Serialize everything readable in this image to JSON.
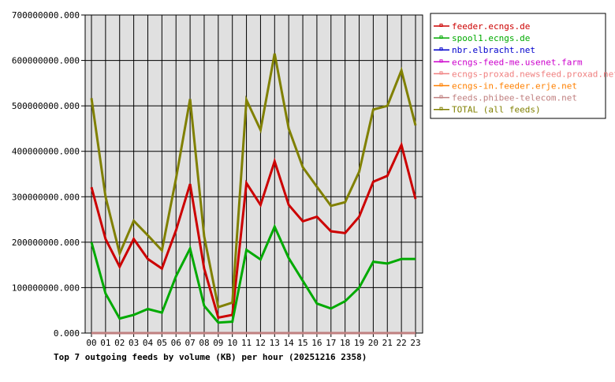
{
  "chart_data": {
    "type": "line",
    "title": "Top 7 outgoing feeds by volume (KB) per hour (20251216 2358)",
    "xlabel": "",
    "ylabel": "",
    "ylim": [
      0,
      700000000
    ],
    "grid": true,
    "legend_position": "right",
    "background": "#e0e0e0",
    "y_ticks": [
      "0.000",
      "100000000.000",
      "200000000.000",
      "300000000.000",
      "400000000.000",
      "500000000.000",
      "600000000.000",
      "700000000.000"
    ],
    "categories": [
      "00",
      "01",
      "02",
      "03",
      "04",
      "05",
      "06",
      "07",
      "08",
      "09",
      "10",
      "11",
      "12",
      "13",
      "14",
      "15",
      "16",
      "17",
      "18",
      "19",
      "20",
      "21",
      "22",
      "23"
    ],
    "series": [
      {
        "name": "feeder.ecngs.de",
        "color": "#cc0000",
        "values": [
          321000000,
          207000000,
          146000000,
          207000000,
          163000000,
          142000000,
          226000000,
          328000000,
          142000000,
          34000000,
          40000000,
          330000000,
          282000000,
          378000000,
          282000000,
          246000000,
          256000000,
          224000000,
          220000000,
          256000000,
          333000000,
          346000000,
          414000000,
          295000000
        ]
      },
      {
        "name": "spool1.ecngs.de",
        "color": "#00aa00",
        "values": [
          200000000,
          87000000,
          32000000,
          40000000,
          53000000,
          45000000,
          125000000,
          186000000,
          60000000,
          23000000,
          25000000,
          183000000,
          162000000,
          234000000,
          165000000,
          115000000,
          65000000,
          54000000,
          70000000,
          100000000,
          157000000,
          153000000,
          163000000,
          163000000
        ]
      },
      {
        "name": "nbr.elbracht.net",
        "color": "#0000cc",
        "values": [
          0,
          0,
          0,
          0,
          0,
          0,
          0,
          0,
          0,
          0,
          0,
          0,
          0,
          0,
          0,
          0,
          0,
          0,
          0,
          0,
          0,
          0,
          0,
          0
        ]
      },
      {
        "name": "ecngs-feed-me.usenet.farm",
        "color": "#cc00cc",
        "values": [
          0,
          0,
          0,
          0,
          0,
          0,
          0,
          0,
          0,
          0,
          0,
          0,
          0,
          0,
          0,
          0,
          0,
          0,
          0,
          0,
          0,
          0,
          0,
          0
        ]
      },
      {
        "name": "ecngs-proxad.newsfeed.proxad.net",
        "color": "#f08080",
        "values": [
          0,
          0,
          0,
          0,
          0,
          0,
          0,
          0,
          0,
          0,
          0,
          0,
          0,
          0,
          0,
          0,
          0,
          0,
          0,
          0,
          0,
          0,
          0,
          0
        ]
      },
      {
        "name": "ecngs-in.feeder.erje.net",
        "color": "#ff8000",
        "values": [
          0,
          0,
          0,
          0,
          0,
          0,
          0,
          0,
          0,
          0,
          0,
          0,
          0,
          0,
          0,
          0,
          0,
          0,
          0,
          0,
          0,
          0,
          0,
          0
        ]
      },
      {
        "name": "feeds.phibee-telecom.net",
        "color": "#c08080",
        "values": [
          0,
          0,
          0,
          0,
          0,
          0,
          0,
          0,
          0,
          0,
          0,
          0,
          0,
          0,
          0,
          0,
          0,
          0,
          0,
          0,
          0,
          0,
          0,
          0
        ]
      },
      {
        "name": "TOTAL (all feeds)",
        "color": "#808000",
        "values": [
          517000000,
          300000000,
          175000000,
          247000000,
          215000000,
          182000000,
          340000000,
          515000000,
          213000000,
          57000000,
          67000000,
          513000000,
          447000000,
          615000000,
          450000000,
          365000000,
          322000000,
          280000000,
          288000000,
          355000000,
          492000000,
          500000000,
          578000000,
          457000000
        ]
      }
    ]
  }
}
